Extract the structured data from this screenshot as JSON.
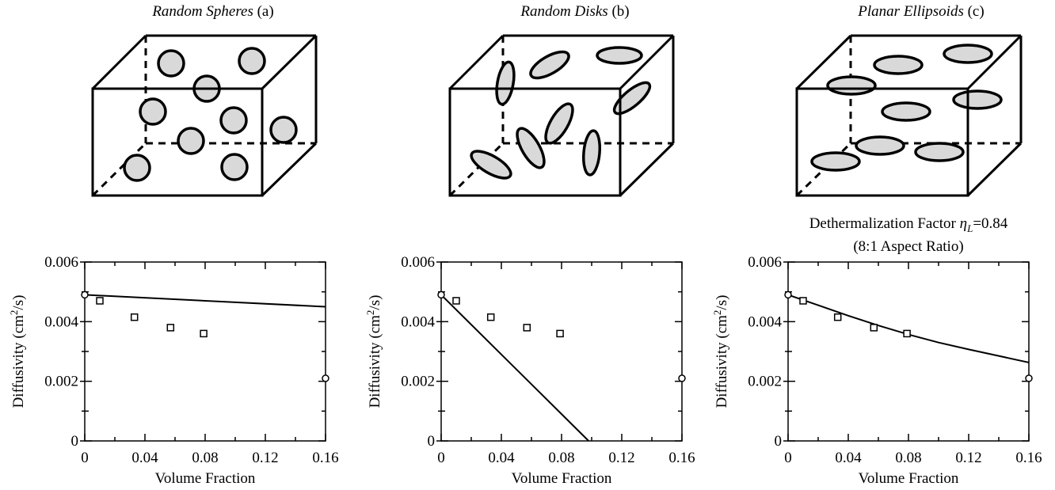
{
  "chart_data": [
    {
      "type": "scatter",
      "panel_title": "Random Spheres",
      "panel_label": "(a)",
      "xlabel": "Volume Fraction",
      "ylabel": [
        "Diffusivity (cm",
        "2",
        "/s)"
      ],
      "xlim": [
        0,
        0.16
      ],
      "xticks": [
        0,
        0.04,
        0.08,
        0.12,
        0.16
      ],
      "xminorticks": [
        0.02,
        0.06,
        0.1,
        0.14
      ],
      "ylim": [
        0,
        0.006
      ],
      "yticks": [
        0,
        0.002,
        0.004,
        0.006
      ],
      "yminorticks": [
        0.001,
        0.003,
        0.005
      ],
      "series": [
        {
          "type": "line",
          "color": "#000000",
          "x": [
            0,
            0.16
          ],
          "values": [
            0.0049,
            0.0045
          ]
        },
        {
          "type": "scatter",
          "marker": "square",
          "color": "#000000",
          "x": [
            0.01,
            0.033,
            0.057,
            0.079
          ],
          "values": [
            0.0047,
            0.00415,
            0.0038,
            0.0036
          ]
        },
        {
          "type": "scatter",
          "marker": "circle",
          "color": "#000000",
          "x": [
            0,
            0.16
          ],
          "values": [
            0.0049,
            0.0021
          ]
        }
      ]
    },
    {
      "type": "scatter",
      "panel_title": "Random Disks",
      "panel_label": "(b)",
      "xlabel": "Volume Fraction",
      "ylabel": [
        "Diffusivity (cm",
        "2",
        "/s)"
      ],
      "xlim": [
        0,
        0.16
      ],
      "xticks": [
        0,
        0.04,
        0.08,
        0.12,
        0.16
      ],
      "xminorticks": [
        0.02,
        0.06,
        0.1,
        0.14
      ],
      "ylim": [
        0,
        0.006
      ],
      "yticks": [
        0,
        0.002,
        0.004,
        0.006
      ],
      "yminorticks": [
        0.001,
        0.003,
        0.005
      ],
      "series": [
        {
          "type": "line",
          "color": "#000000",
          "x": [
            0,
            0.098
          ],
          "values": [
            0.0049,
            0
          ]
        },
        {
          "type": "scatter",
          "marker": "square",
          "color": "#000000",
          "x": [
            0.01,
            0.033,
            0.057,
            0.079
          ],
          "values": [
            0.0047,
            0.00415,
            0.0038,
            0.0036
          ]
        },
        {
          "type": "scatter",
          "marker": "circle",
          "color": "#000000",
          "x": [
            0,
            0.16
          ],
          "values": [
            0.0049,
            0.0021
          ]
        }
      ]
    },
    {
      "type": "scatter",
      "panel_title": "Planar Ellipsoids",
      "panel_label": "(c)",
      "annotation": [
        "Dethermalization Factor ",
        "η",
        "L",
        "=0.84"
      ],
      "annotation2": "(8:1 Aspect Ratio)",
      "xlabel": "Volume Fraction",
      "ylabel": [
        "Diffusivity (cm",
        "2",
        "/s)"
      ],
      "xlim": [
        0,
        0.16
      ],
      "xticks": [
        0,
        0.04,
        0.08,
        0.12,
        0.16
      ],
      "xminorticks": [
        0.02,
        0.06,
        0.1,
        0.14
      ],
      "ylim": [
        0,
        0.006
      ],
      "yticks": [
        0,
        0.002,
        0.004,
        0.006
      ],
      "yminorticks": [
        0.001,
        0.003,
        0.005
      ],
      "series": [
        {
          "type": "line",
          "color": "#000000",
          "x": [
            0,
            0.02,
            0.04,
            0.06,
            0.08,
            0.1,
            0.12,
            0.14,
            0.16
          ],
          "values": [
            0.0049,
            0.00455,
            0.0042,
            0.00387,
            0.00357,
            0.0033,
            0.00307,
            0.00285,
            0.00263
          ]
        },
        {
          "type": "scatter",
          "marker": "square",
          "color": "#000000",
          "x": [
            0.01,
            0.033,
            0.057,
            0.079
          ],
          "values": [
            0.0047,
            0.00415,
            0.0038,
            0.0036
          ]
        },
        {
          "type": "scatter",
          "marker": "circle",
          "color": "#000000",
          "x": [
            0,
            0.16
          ],
          "values": [
            0.0049,
            0.0021
          ]
        }
      ]
    }
  ]
}
